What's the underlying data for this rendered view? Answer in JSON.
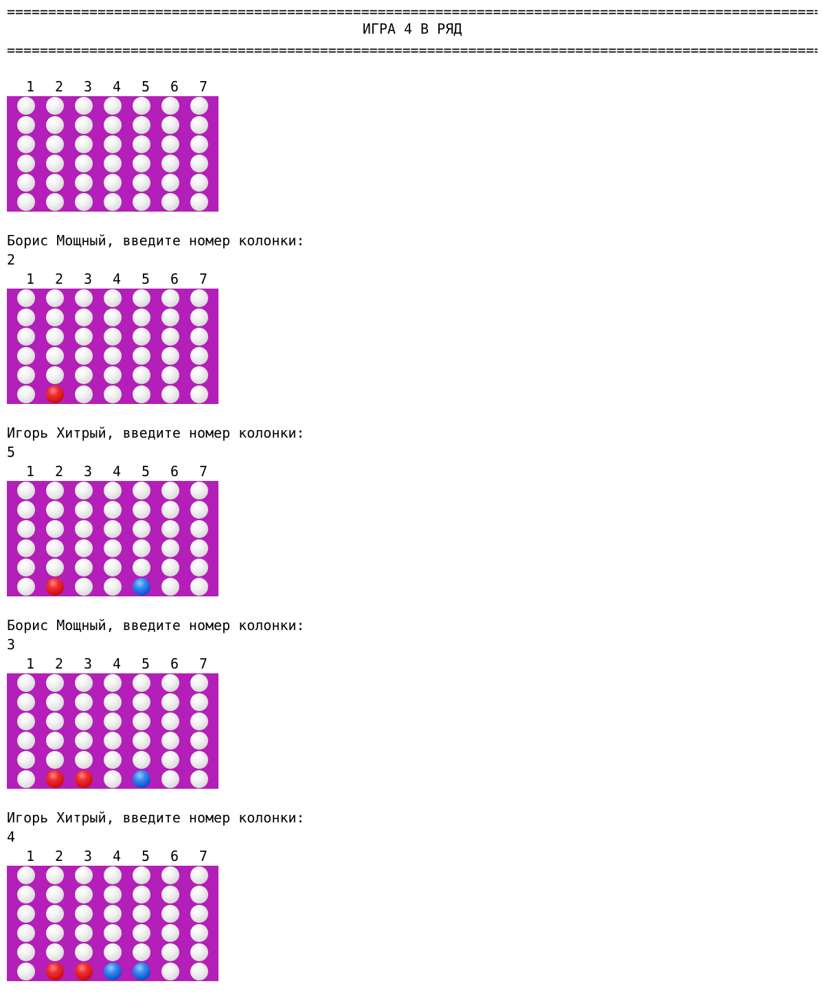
{
  "header": {
    "separator": "======================================================================================================================",
    "title": "ИГРА 4 В РЯД"
  },
  "column_labels": [
    "1",
    "2",
    "3",
    "4",
    "5",
    "6",
    "7"
  ],
  "colors": {
    "board": "#b31fb8",
    "empty": "#e6e6e6",
    "player1_disc": "#e01e1e",
    "player2_disc": "#1f63e0"
  },
  "boards": [
    {
      "prompt": null,
      "input": null,
      "grid": [
        [
          "",
          "",
          "",
          "",
          "",
          "",
          ""
        ],
        [
          "",
          "",
          "",
          "",
          "",
          "",
          ""
        ],
        [
          "",
          "",
          "",
          "",
          "",
          "",
          ""
        ],
        [
          "",
          "",
          "",
          "",
          "",
          "",
          ""
        ],
        [
          "",
          "",
          "",
          "",
          "",
          "",
          ""
        ],
        [
          "",
          "",
          "",
          "",
          "",
          "",
          ""
        ]
      ]
    },
    {
      "prompt": "Борис Мощный, введите номер колонки:",
      "input": "2",
      "grid": [
        [
          "",
          "",
          "",
          "",
          "",
          "",
          ""
        ],
        [
          "",
          "",
          "",
          "",
          "",
          "",
          ""
        ],
        [
          "",
          "",
          "",
          "",
          "",
          "",
          ""
        ],
        [
          "",
          "",
          "",
          "",
          "",
          "",
          ""
        ],
        [
          "",
          "",
          "",
          "",
          "",
          "",
          ""
        ],
        [
          "",
          "R",
          "",
          "",
          "",
          "",
          ""
        ]
      ]
    },
    {
      "prompt": "Игорь Хитрый, введите номер колонки:",
      "input": "5",
      "grid": [
        [
          "",
          "",
          "",
          "",
          "",
          "",
          ""
        ],
        [
          "",
          "",
          "",
          "",
          "",
          "",
          ""
        ],
        [
          "",
          "",
          "",
          "",
          "",
          "",
          ""
        ],
        [
          "",
          "",
          "",
          "",
          "",
          "",
          ""
        ],
        [
          "",
          "",
          "",
          "",
          "",
          "",
          ""
        ],
        [
          "",
          "R",
          "",
          "",
          "B",
          "",
          ""
        ]
      ]
    },
    {
      "prompt": "Борис Мощный, введите номер колонки:",
      "input": "3",
      "grid": [
        [
          "",
          "",
          "",
          "",
          "",
          "",
          ""
        ],
        [
          "",
          "",
          "",
          "",
          "",
          "",
          ""
        ],
        [
          "",
          "",
          "",
          "",
          "",
          "",
          ""
        ],
        [
          "",
          "",
          "",
          "",
          "",
          "",
          ""
        ],
        [
          "",
          "",
          "",
          "",
          "",
          "",
          ""
        ],
        [
          "",
          "R",
          "R",
          "",
          "B",
          "",
          ""
        ]
      ]
    },
    {
      "prompt": "Игорь Хитрый, введите номер колонки:",
      "input": "4",
      "grid": [
        [
          "",
          "",
          "",
          "",
          "",
          "",
          ""
        ],
        [
          "",
          "",
          "",
          "",
          "",
          "",
          ""
        ],
        [
          "",
          "",
          "",
          "",
          "",
          "",
          ""
        ],
        [
          "",
          "",
          "",
          "",
          "",
          "",
          ""
        ],
        [
          "",
          "",
          "",
          "",
          "",
          "",
          ""
        ],
        [
          "",
          "R",
          "R",
          "B",
          "B",
          "",
          ""
        ]
      ]
    }
  ]
}
